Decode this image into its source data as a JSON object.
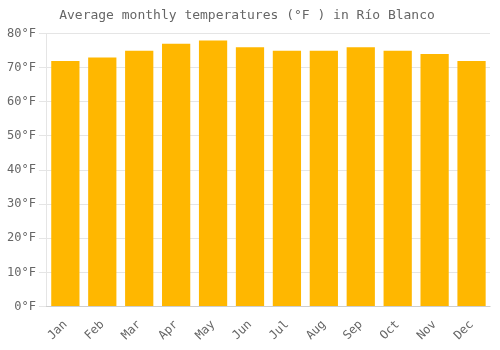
{
  "chart_data": {
    "type": "bar",
    "title": "Average monthly temperatures (°F ) in Río Blanco",
    "categories": [
      "Jan",
      "Feb",
      "Mar",
      "Apr",
      "May",
      "Jun",
      "Jul",
      "Aug",
      "Sep",
      "Oct",
      "Nov",
      "Dec"
    ],
    "values": [
      72,
      73,
      75,
      77,
      78,
      76,
      75,
      75,
      76,
      75,
      74,
      72
    ],
    "color": "#FFB700",
    "ylim": [
      0,
      80
    ],
    "yticks": [
      {
        "value": 0,
        "label": "0°F"
      },
      {
        "value": 10,
        "label": "10°F"
      },
      {
        "value": 20,
        "label": "20°F"
      },
      {
        "value": 30,
        "label": "30°F"
      },
      {
        "value": 40,
        "label": "40°F"
      },
      {
        "value": 50,
        "label": "50°F"
      },
      {
        "value": 60,
        "label": "60°F"
      },
      {
        "value": 70,
        "label": "70°F"
      },
      {
        "value": 80,
        "label": "80°F"
      }
    ],
    "grid": true
  }
}
